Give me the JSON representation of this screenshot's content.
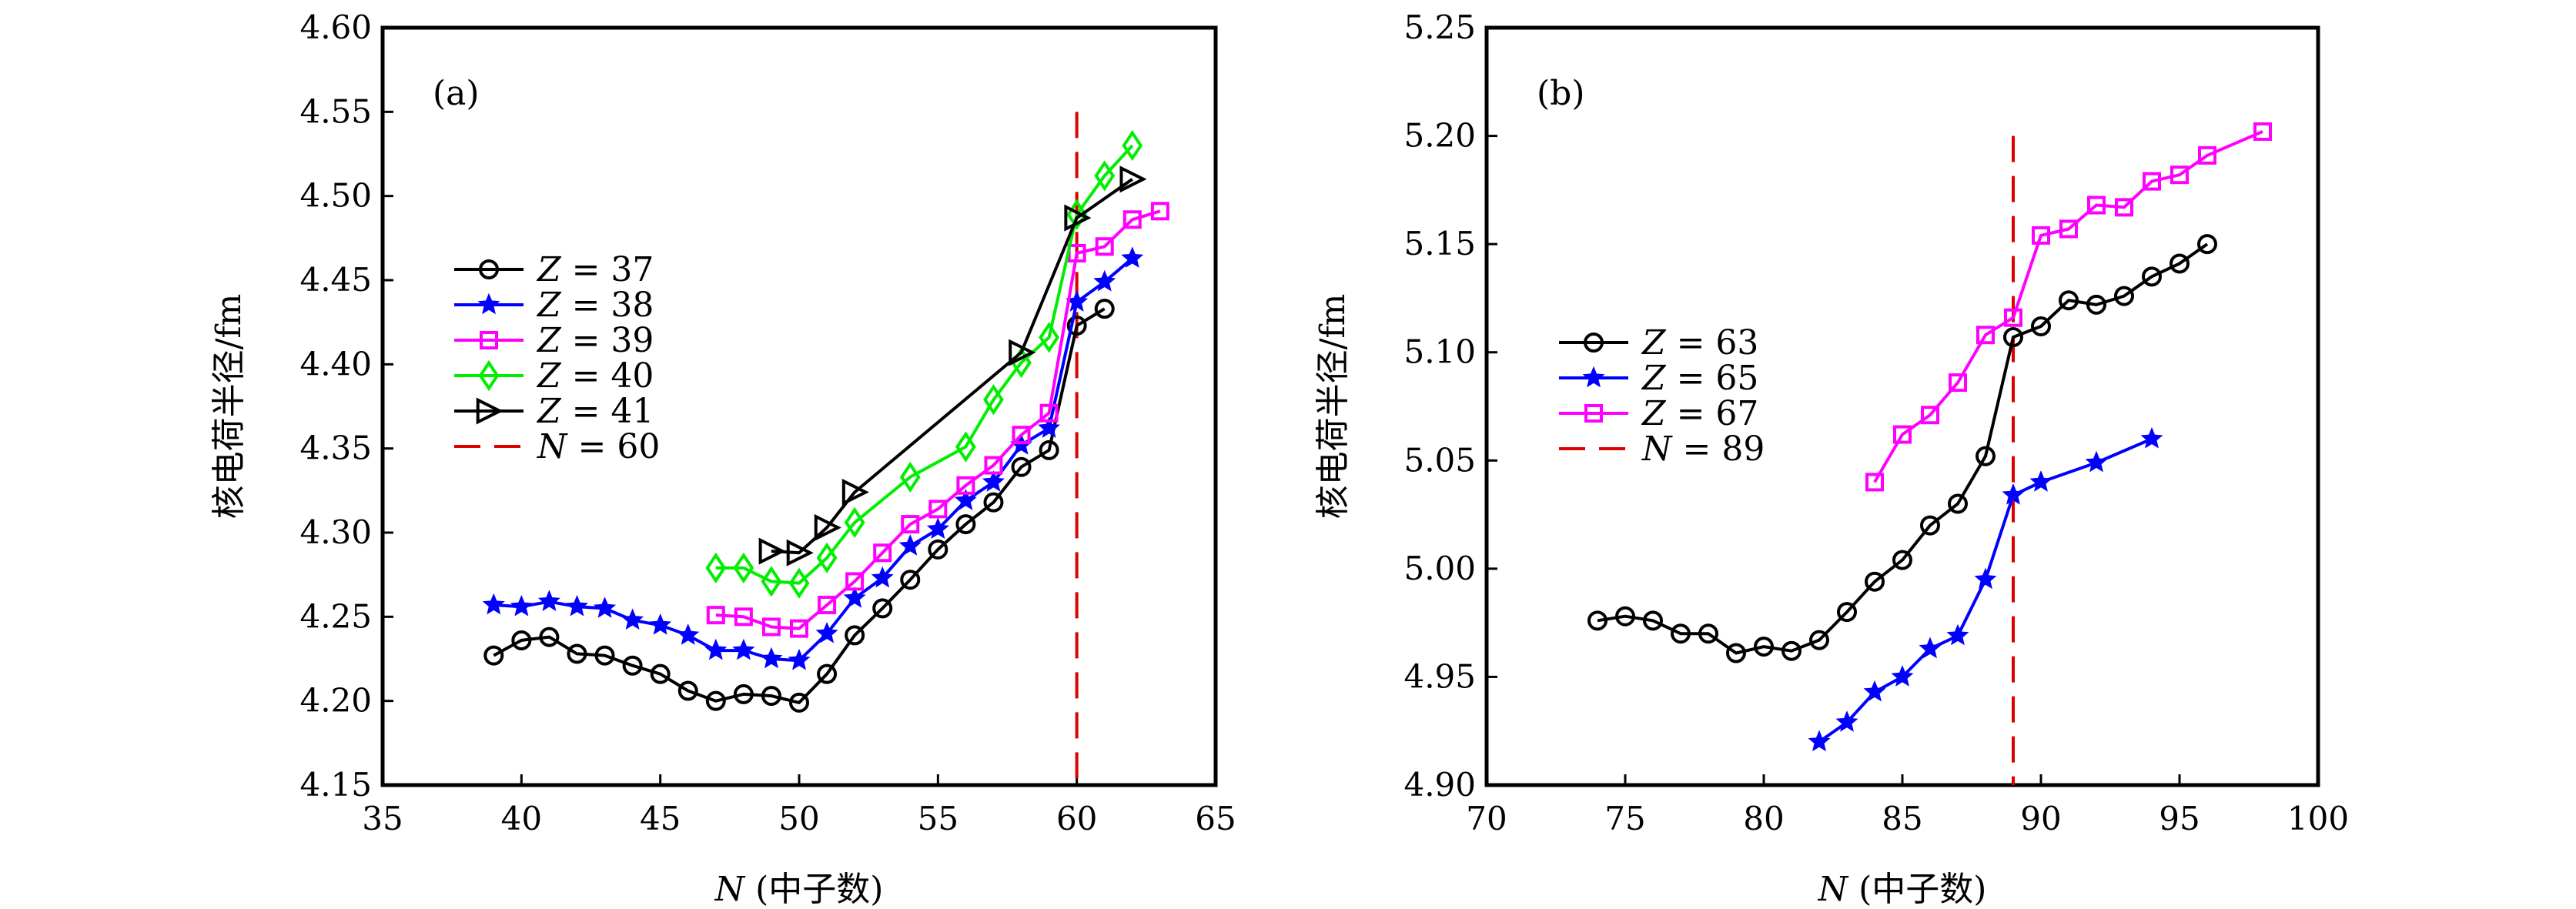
{
  "chart_data": [
    {
      "type": "line",
      "panel_label": "(a)",
      "xlabel_var": "N",
      "xlabel_rest": " (中子数)",
      "ylabel": "核电荷半径/fm",
      "xlim": [
        35,
        65
      ],
      "ylim": [
        4.15,
        4.6
      ],
      "xticks": [
        35,
        40,
        45,
        50,
        55,
        60,
        65
      ],
      "yticks": [
        4.15,
        4.2,
        4.25,
        4.3,
        4.35,
        4.4,
        4.45,
        4.5,
        4.55,
        4.6
      ],
      "ytick_labels": [
        "4.15",
        "4.20",
        "4.25",
        "4.30",
        "4.35",
        "4.40",
        "4.45",
        "4.50",
        "4.55",
        "4.60"
      ],
      "legend_position": "center-left",
      "series": [
        {
          "name": "Z = 37",
          "var": "Z",
          "value": "37",
          "color": "#000000",
          "marker": "circle",
          "x": [
            39,
            40,
            41,
            42,
            43,
            44,
            45,
            46,
            47,
            48,
            49,
            50,
            51,
            52,
            53,
            54,
            55,
            56,
            57,
            58,
            59,
            60,
            61
          ],
          "y": [
            4.227,
            4.236,
            4.238,
            4.228,
            4.227,
            4.221,
            4.216,
            4.206,
            4.2,
            4.204,
            4.203,
            4.199,
            4.216,
            4.239,
            4.255,
            4.272,
            4.29,
            4.305,
            4.318,
            4.339,
            4.349,
            4.423,
            4.433
          ]
        },
        {
          "name": "Z = 38",
          "var": "Z",
          "value": "38",
          "color": "#0000ff",
          "marker": "star",
          "x": [
            39,
            40,
            41,
            42,
            43,
            44,
            45,
            46,
            47,
            48,
            49,
            50,
            51,
            52,
            53,
            54,
            55,
            56,
            57,
            58,
            59,
            60,
            61,
            62
          ],
          "y": [
            4.257,
            4.256,
            4.259,
            4.256,
            4.255,
            4.248,
            4.245,
            4.239,
            4.23,
            4.23,
            4.225,
            4.224,
            4.24,
            4.261,
            4.273,
            4.292,
            4.302,
            4.319,
            4.33,
            4.352,
            4.362,
            4.437,
            4.449,
            4.463
          ]
        },
        {
          "name": "Z = 39",
          "var": "Z",
          "value": "39",
          "color": "#ff00ff",
          "marker": "square",
          "x": [
            47,
            48,
            49,
            50,
            51,
            52,
            53,
            54,
            55,
            56,
            57,
            58,
            59,
            60,
            61,
            62,
            63
          ],
          "y": [
            4.251,
            4.25,
            4.244,
            4.243,
            4.257,
            4.271,
            4.288,
            4.305,
            4.314,
            4.328,
            4.34,
            4.358,
            4.371,
            4.466,
            4.47,
            4.486,
            4.491
          ]
        },
        {
          "name": "Z = 40",
          "var": "Z",
          "value": "40",
          "color": "#00ee00",
          "marker": "diamond",
          "x": [
            47,
            48,
            49,
            50,
            51,
            52,
            54,
            56,
            57,
            58,
            59,
            60,
            61,
            62
          ],
          "y": [
            4.279,
            4.279,
            4.271,
            4.27,
            4.285,
            4.306,
            4.333,
            4.351,
            4.379,
            4.401,
            4.416,
            4.489,
            4.512,
            4.53
          ]
        },
        {
          "name": "Z = 41",
          "var": "Z",
          "value": "41",
          "color": "#000000",
          "marker": "triangle-right",
          "x": [
            49,
            50,
            51,
            52,
            58,
            60,
            62
          ],
          "y": [
            4.289,
            4.288,
            4.303,
            4.324,
            4.407,
            4.487,
            4.51
          ]
        }
      ],
      "vline": {
        "name": "N = 60",
        "var": "N",
        "value": "60",
        "x": 60,
        "color": "#dd0000",
        "style": "dashed",
        "y_top": 4.55
      }
    },
    {
      "type": "line",
      "panel_label": "(b)",
      "xlabel_var": "N",
      "xlabel_rest": " (中子数)",
      "ylabel": "核电荷半径/fm",
      "xlim": [
        70,
        100
      ],
      "ylim": [
        4.9,
        5.25
      ],
      "xticks": [
        70,
        75,
        80,
        85,
        90,
        95,
        100
      ],
      "yticks": [
        4.9,
        4.95,
        5.0,
        5.05,
        5.1,
        5.15,
        5.2,
        5.25
      ],
      "ytick_labels": [
        "4.90",
        "4.95",
        "5.00",
        "5.05",
        "5.10",
        "5.15",
        "5.20",
        "5.25"
      ],
      "legend_position": "center-left",
      "series": [
        {
          "name": "Z = 63",
          "var": "Z",
          "value": "63",
          "color": "#000000",
          "marker": "circle",
          "x": [
            74,
            75,
            76,
            77,
            78,
            79,
            80,
            81,
            82,
            83,
            84,
            85,
            86,
            87,
            88,
            89,
            90,
            91,
            92,
            93,
            94,
            95,
            96
          ],
          "y": [
            4.976,
            4.978,
            4.976,
            4.97,
            4.97,
            4.961,
            4.964,
            4.962,
            4.967,
            4.98,
            4.994,
            5.004,
            5.02,
            5.03,
            5.052,
            5.107,
            5.112,
            5.124,
            5.122,
            5.126,
            5.135,
            5.141,
            5.15
          ]
        },
        {
          "name": "Z = 65",
          "var": "Z",
          "value": "65",
          "color": "#0000ff",
          "marker": "star",
          "x": [
            82,
            83,
            84,
            85,
            86,
            87,
            88,
            89,
            90,
            92,
            94
          ],
          "y": [
            4.92,
            4.929,
            4.943,
            4.95,
            4.963,
            4.969,
            4.995,
            5.034,
            5.04,
            5.049,
            5.06
          ]
        },
        {
          "name": "Z = 67",
          "var": "Z",
          "value": "67",
          "color": "#ff00ff",
          "marker": "square",
          "x": [
            84,
            85,
            86,
            87,
            88,
            89,
            90,
            91,
            92,
            93,
            94,
            95,
            96,
            98
          ],
          "y": [
            5.04,
            5.062,
            5.071,
            5.086,
            5.108,
            5.116,
            5.154,
            5.157,
            5.168,
            5.167,
            5.179,
            5.182,
            5.191,
            5.202
          ]
        }
      ],
      "vline": {
        "name": "N = 89",
        "var": "N",
        "value": "89",
        "x": 89,
        "color": "#dd0000",
        "style": "dashed",
        "y_top": 5.2
      }
    }
  ]
}
